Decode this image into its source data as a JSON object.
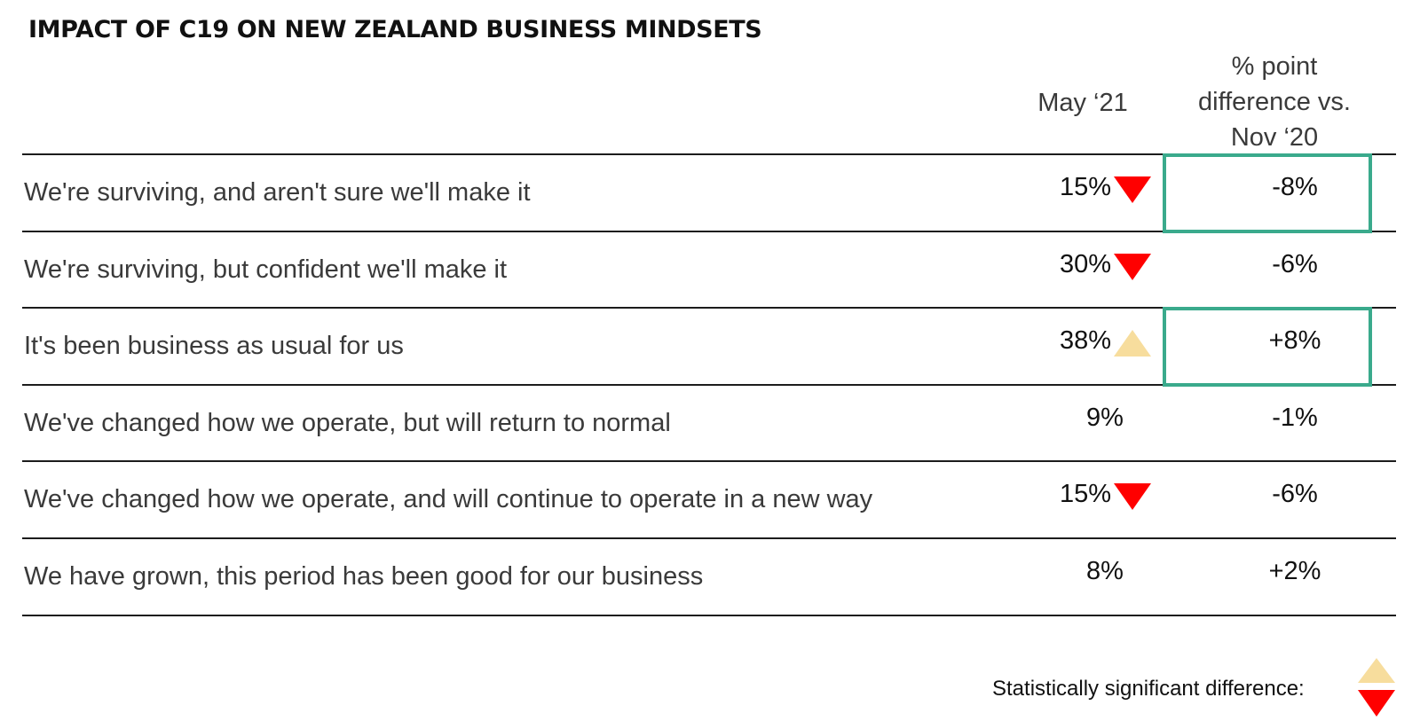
{
  "colors": {
    "down_arrow": "#ff0000",
    "up_arrow": "#f7dd9d",
    "highlight_border": "#3aaa8c",
    "row_rule": "#1c1c1c"
  },
  "chart_data": {
    "type": "table",
    "title": "IMPACT OF C19 ON NEW ZEALAND BUSINESS MINDSETS",
    "columns": [
      "May ‘21",
      "% point difference vs. Nov ‘20"
    ],
    "column_header_lines": {
      "may": [
        "May ‘21"
      ],
      "diff": [
        "% point",
        "difference vs.",
        "Nov ‘20"
      ]
    },
    "rows": [
      {
        "label": "We're surviving, and aren't sure we'll make it",
        "value": "15%",
        "diff": "-8%",
        "significance": "down",
        "highlighted": true
      },
      {
        "label": "We're surviving, but confident we'll make it",
        "value": "30%",
        "diff": "-6%",
        "significance": "down",
        "highlighted": false
      },
      {
        "label": "It's been business as usual for us",
        "value": "38%",
        "diff": "+8%",
        "significance": "up",
        "highlighted": true
      },
      {
        "label": "We've changed how we operate, but will return to normal",
        "value": "9%",
        "diff": "-1%",
        "significance": "none",
        "highlighted": false
      },
      {
        "label": "We've changed how we operate, and will continue to operate in a new way",
        "value": "15%",
        "diff": "-6%",
        "significance": "down",
        "highlighted": false
      },
      {
        "label": "We have grown, this period has been good for our business",
        "value": "8%",
        "diff": "+2%",
        "significance": "none",
        "highlighted": false
      }
    ],
    "legend": {
      "label": "Statistically significant difference:",
      "icons": [
        "up-arrow-icon",
        "down-arrow-icon"
      ]
    }
  }
}
